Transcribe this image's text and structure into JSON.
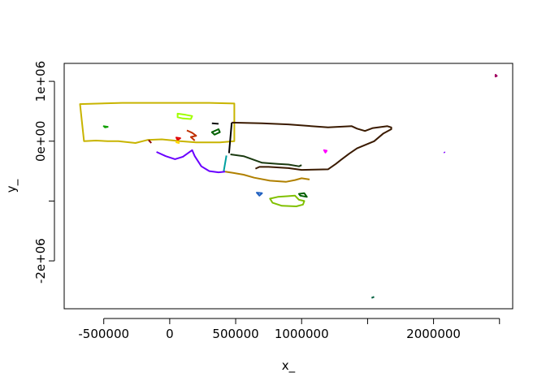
{
  "chart_data": {
    "type": "line",
    "title": "",
    "xlabel": "x_",
    "ylabel": "y_",
    "xlim": [
      -800000,
      2600000
    ],
    "ylim": [
      -2800000,
      1300000
    ],
    "x_ticks": [
      {
        "value": -500000,
        "label": "-500000"
      },
      {
        "value": 0,
        "label": "0"
      },
      {
        "value": 500000,
        "label": "500000"
      },
      {
        "value": 1000000,
        "label": "1000000"
      },
      {
        "value": 1500000,
        "label": ""
      },
      {
        "value": 2000000,
        "label": "2000000"
      },
      {
        "value": 2500000,
        "label": ""
      }
    ],
    "y_ticks": [
      {
        "value": -2000000,
        "label": "-2e+06"
      },
      {
        "value": -1000000,
        "label": ""
      },
      {
        "value": 0,
        "label": "0e+00"
      },
      {
        "value": 1000000,
        "label": "1e+06"
      }
    ],
    "series": [
      {
        "color": "#c8b400",
        "closed": true,
        "points": [
          [
            -680000,
            620000
          ],
          [
            -360000,
            640000
          ],
          [
            0,
            640000
          ],
          [
            300000,
            640000
          ],
          [
            490000,
            630000
          ],
          [
            490000,
            0
          ],
          [
            380000,
            -20000
          ],
          [
            200000,
            -20000
          ],
          [
            80000,
            0
          ],
          [
            -60000,
            30000
          ],
          [
            -170000,
            20000
          ],
          [
            -260000,
            -30000
          ],
          [
            -390000,
            0
          ],
          [
            -470000,
            0
          ],
          [
            -560000,
            10000
          ],
          [
            -650000,
            0
          ]
        ]
      },
      {
        "color": "#3a1a00",
        "closed": false,
        "points": [
          [
            470000,
            310000
          ],
          [
            700000,
            300000
          ],
          [
            900000,
            280000
          ],
          [
            1200000,
            230000
          ],
          [
            1380000,
            250000
          ],
          [
            1420000,
            210000
          ],
          [
            1480000,
            170000
          ],
          [
            1540000,
            220000
          ],
          [
            1650000,
            250000
          ],
          [
            1680000,
            230000
          ],
          [
            1680000,
            200000
          ],
          [
            1620000,
            130000
          ],
          [
            1550000,
            0
          ],
          [
            1420000,
            -120000
          ],
          [
            1360000,
            -210000
          ],
          [
            1300000,
            -310000
          ],
          [
            1260000,
            -380000
          ],
          [
            1200000,
            -470000
          ],
          [
            1000000,
            -480000
          ],
          [
            900000,
            -450000
          ],
          [
            750000,
            -430000
          ],
          [
            680000,
            -430000
          ],
          [
            650000,
            -460000
          ]
        ]
      },
      {
        "color": "#000000",
        "closed": false,
        "points": [
          [
            470000,
            310000
          ],
          [
            450000,
            -200000
          ]
        ]
      },
      {
        "color": "#00a0a0",
        "closed": false,
        "points": [
          [
            430000,
            -240000
          ],
          [
            410000,
            -500000
          ]
        ]
      },
      {
        "color": "#1a3a10",
        "closed": false,
        "points": [
          [
            460000,
            -220000
          ],
          [
            560000,
            -250000
          ],
          [
            700000,
            -360000
          ],
          [
            820000,
            -380000
          ],
          [
            900000,
            -390000
          ],
          [
            980000,
            -420000
          ],
          [
            1000000,
            -400000
          ]
        ]
      },
      {
        "color": "#6a00ff",
        "closed": false,
        "points": [
          [
            -100000,
            -180000
          ],
          [
            -30000,
            -250000
          ],
          [
            40000,
            -300000
          ],
          [
            100000,
            -260000
          ],
          [
            170000,
            -150000
          ],
          [
            190000,
            -250000
          ],
          [
            240000,
            -420000
          ],
          [
            300000,
            -500000
          ],
          [
            370000,
            -520000
          ],
          [
            420000,
            -510000
          ]
        ]
      },
      {
        "color": "#b08000",
        "closed": false,
        "points": [
          [
            420000,
            -510000
          ],
          [
            480000,
            -530000
          ],
          [
            560000,
            -560000
          ],
          [
            640000,
            -610000
          ],
          [
            760000,
            -660000
          ],
          [
            880000,
            -680000
          ],
          [
            950000,
            -650000
          ],
          [
            1000000,
            -620000
          ],
          [
            1060000,
            -640000
          ]
        ]
      },
      {
        "color": "#80c000",
        "closed": true,
        "points": [
          [
            760000,
            -960000
          ],
          [
            780000,
            -1030000
          ],
          [
            850000,
            -1080000
          ],
          [
            960000,
            -1090000
          ],
          [
            1010000,
            -1060000
          ],
          [
            1020000,
            -1000000
          ],
          [
            980000,
            -980000
          ],
          [
            950000,
            -910000
          ],
          [
            890000,
            -920000
          ],
          [
            820000,
            -930000
          ]
        ]
      },
      {
        "color": "#a0ff00",
        "closed": true,
        "points": [
          [
            60000,
            460000
          ],
          [
            120000,
            440000
          ],
          [
            170000,
            420000
          ],
          [
            160000,
            370000
          ],
          [
            100000,
            380000
          ],
          [
            60000,
            400000
          ]
        ]
      },
      {
        "color": "#c03000",
        "closed": false,
        "points": [
          [
            130000,
            180000
          ],
          [
            170000,
            140000
          ],
          [
            200000,
            90000
          ],
          [
            160000,
            70000
          ],
          [
            190000,
            10000
          ]
        ]
      },
      {
        "color": "#006000",
        "closed": true,
        "points": [
          [
            320000,
            150000
          ],
          [
            370000,
            200000
          ],
          [
            380000,
            150000
          ],
          [
            340000,
            110000
          ]
        ]
      },
      {
        "color": "#101010",
        "closed": false,
        "points": [
          [
            320000,
            300000
          ],
          [
            370000,
            290000
          ]
        ]
      },
      {
        "color": "#10a000",
        "closed": true,
        "points": [
          [
            -500000,
            250000
          ],
          [
            -470000,
            240000
          ],
          [
            -490000,
            230000
          ]
        ]
      },
      {
        "color": "#ff00ff",
        "closed": true,
        "points": [
          [
            1170000,
            -150000
          ],
          [
            1190000,
            -160000
          ],
          [
            1180000,
            -190000
          ]
        ]
      },
      {
        "color": "#a00060",
        "closed": true,
        "points": [
          [
            2470000,
            1110000
          ],
          [
            2480000,
            1090000
          ],
          [
            2470000,
            1080000
          ]
        ]
      },
      {
        "color": "#8000ff",
        "closed": false,
        "points": [
          [
            2080000,
            -180000
          ],
          [
            2085000,
            -195000
          ]
        ]
      },
      {
        "color": "#006040",
        "closed": false,
        "points": [
          [
            1530000,
            -2620000
          ],
          [
            1550000,
            -2600000
          ]
        ]
      },
      {
        "color": "#2060c0",
        "closed": true,
        "points": [
          [
            660000,
            -860000
          ],
          [
            700000,
            -870000
          ],
          [
            680000,
            -910000
          ]
        ]
      },
      {
        "color": "#006000",
        "closed": true,
        "points": [
          [
            980000,
            -880000
          ],
          [
            1020000,
            -870000
          ],
          [
            1040000,
            -930000
          ],
          [
            990000,
            -910000
          ]
        ]
      },
      {
        "color": "#8b0000",
        "closed": false,
        "points": [
          [
            -160000,
            20000
          ],
          [
            -140000,
            -30000
          ]
        ]
      },
      {
        "color": "#e00000",
        "closed": true,
        "points": [
          [
            50000,
            60000
          ],
          [
            80000,
            50000
          ],
          [
            60000,
            20000
          ]
        ]
      },
      {
        "color": "#ffd700",
        "closed": true,
        "points": [
          [
            60000,
            0
          ],
          [
            70000,
            -30000
          ],
          [
            50000,
            -20000
          ]
        ]
      }
    ]
  }
}
